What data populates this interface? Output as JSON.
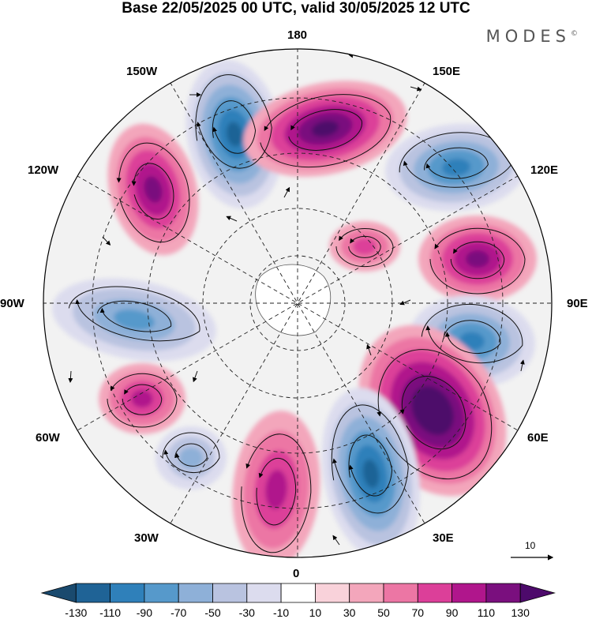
{
  "title": "Base 22/05/2025 00 UTC, valid 30/05/2025 12 UTC",
  "brand": "MODES",
  "brand_mark": "©",
  "longitude_labels": {
    "top": "180",
    "bottom": "0",
    "left": "90W",
    "right": "90E",
    "ul1": "150W",
    "ul2": "120W",
    "ur1": "150E",
    "ur2": "120E",
    "ll1": "60W",
    "ll2": "30W",
    "lr1": "60E",
    "lr2": "30E"
  },
  "vector_scale_label": "10",
  "colorbar": {
    "labels": [
      "-130",
      "-110",
      "-90",
      "-70",
      "-50",
      "-30",
      "-10",
      "10",
      "30",
      "50",
      "70",
      "90",
      "110",
      "130"
    ],
    "colors": [
      "#1a4a6e",
      "#1f6396",
      "#2f80ba",
      "#5699cb",
      "#8eb0d8",
      "#b9c3e0",
      "#dcdcee",
      "#ffffff",
      "#f9d2da",
      "#f3a6bb",
      "#ec76a4",
      "#dc3f99",
      "#b0168c",
      "#7a0f7e",
      "#4d0a6b"
    ]
  },
  "anomaly_centers": [
    {
      "sign": "negative",
      "value": -120
    },
    {
      "sign": "positive",
      "value": 110
    },
    {
      "sign": "positive",
      "value": 100
    },
    {
      "sign": "negative",
      "value": -90
    },
    {
      "sign": "positive",
      "value": 90
    },
    {
      "sign": "negative",
      "value": -100
    },
    {
      "sign": "positive",
      "value": 130
    },
    {
      "sign": "negative",
      "value": -120
    },
    {
      "sign": "positive",
      "value": 70
    },
    {
      "sign": "negative",
      "value": -50
    },
    {
      "sign": "positive",
      "value": 70
    },
    {
      "sign": "negative",
      "value": -70
    },
    {
      "sign": "positive",
      "value": 50
    }
  ]
}
